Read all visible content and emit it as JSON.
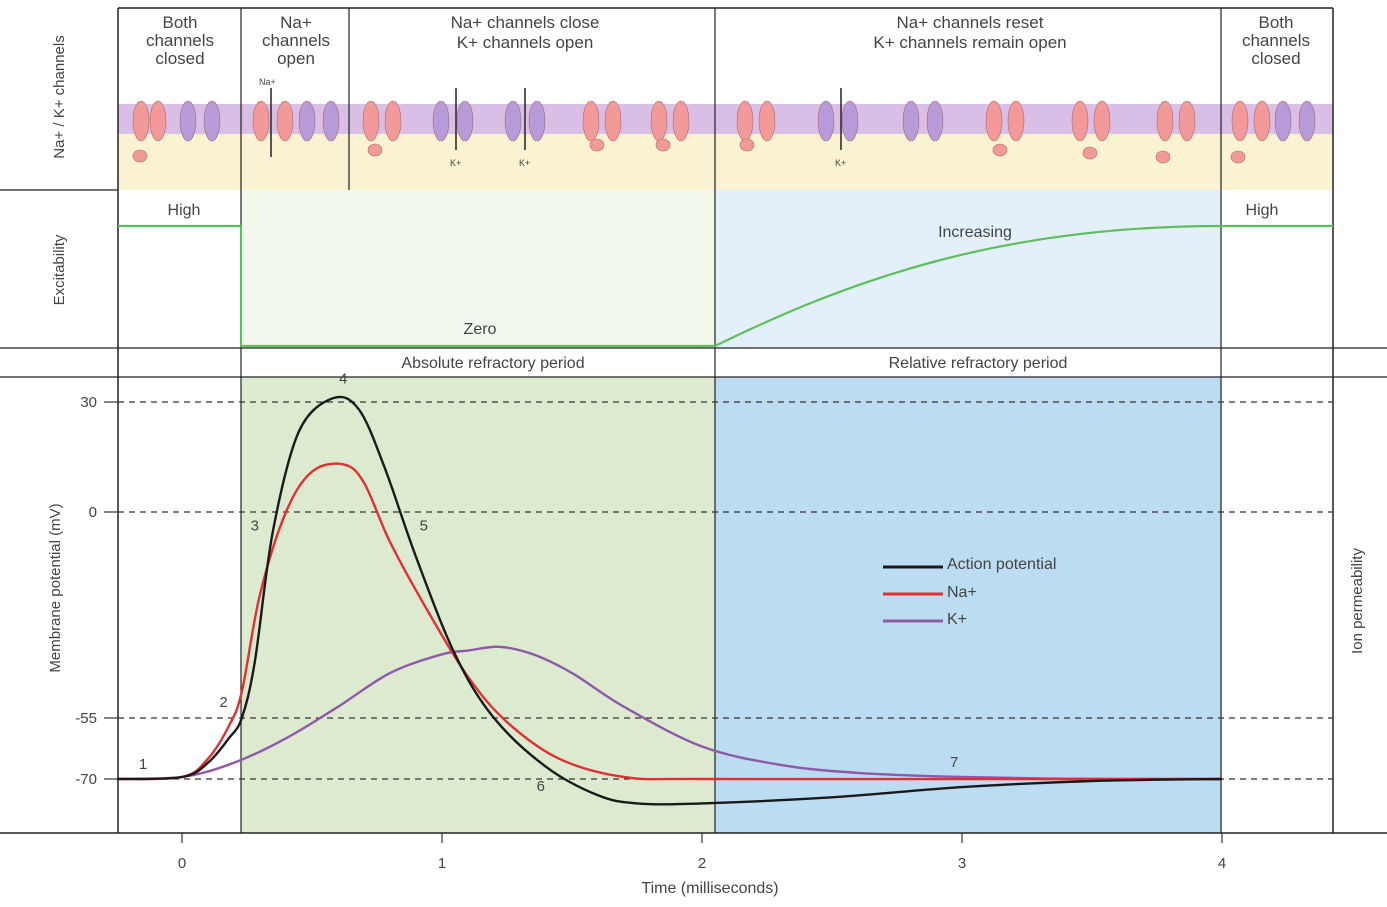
{
  "header": {
    "row_label": "Na+ / K+ channels",
    "phases": [
      {
        "lines": [
          "Both",
          "channels",
          "closed"
        ]
      },
      {
        "lines": [
          "Na+",
          "channels",
          "open"
        ]
      },
      {
        "lines": [
          "Na+ channels close",
          "K+ channels open"
        ]
      },
      {
        "lines": [
          "Na+ channels reset",
          "K+ channels remain open"
        ]
      },
      {
        "lines": [
          "Both",
          "channels",
          "closed"
        ]
      }
    ],
    "ion_tags": [
      "Na+",
      "K+",
      "K+",
      "K+"
    ]
  },
  "excitability": {
    "row_label": "Excitability",
    "labels": [
      "High",
      "Zero",
      "Increasing",
      "High"
    ],
    "color": "#5cbf5c"
  },
  "periods": {
    "absolute": "Absolute refractory period",
    "relative": "Relative refractory period",
    "absolute_color": "#dcebd0",
    "relative_color": "#bcdcf2"
  },
  "colors": {
    "membrane": "#d9bfe6",
    "cytoplasm": "#f9f3d2",
    "na_channel": "#f29a9a",
    "k_channel": "#b79ad8"
  },
  "chart_data": {
    "type": "line",
    "xlabel": "Time (milliseconds)",
    "ylabel": "Membrane potential (mV)",
    "y2label": "Ion permeability",
    "xlim": [
      -0.25,
      4.45
    ],
    "ylim": [
      -82,
      38
    ],
    "xticks": [
      0,
      1,
      2,
      3,
      4
    ],
    "xtick_labels": [
      "0",
      "1",
      "2",
      "3",
      "4"
    ],
    "yticks": [
      30,
      0,
      -55,
      -70
    ],
    "ytick_labels": [
      "30",
      "0",
      "-55",
      "-70"
    ],
    "gridlines_dashed": [
      30,
      0,
      -55,
      -70
    ],
    "legend_position": "center-right",
    "series": [
      {
        "name": "Action potential",
        "color": "#1a1a1a",
        "x": [
          -0.25,
          0,
          0.1,
          0.18,
          0.23,
          0.28,
          0.35,
          0.45,
          0.58,
          0.68,
          0.78,
          0.9,
          1.05,
          1.2,
          1.4,
          1.6,
          1.75,
          2.0,
          2.5,
          3.0,
          3.5,
          4.0
        ],
        "y": [
          -70,
          -69.5,
          -66,
          -60,
          -55,
          -40,
          -5,
          22,
          31,
          28,
          12,
          -12,
          -38,
          -55,
          -67,
          -74,
          -76,
          -76,
          -74.5,
          -72,
          -70.5,
          -70
        ]
      },
      {
        "name": "Na+",
        "color": "#e03030",
        "x": [
          -0.25,
          0,
          0.1,
          0.18,
          0.23,
          0.3,
          0.4,
          0.5,
          0.62,
          0.7,
          0.8,
          0.95,
          1.1,
          1.25,
          1.45,
          1.7,
          2.0,
          3.0,
          4.0
        ],
        "y": [
          -70,
          -69.5,
          -65,
          -57,
          -48,
          -22,
          0,
          11,
          13,
          8,
          -8,
          -27,
          -44,
          -56,
          -65,
          -69.5,
          -70,
          -70,
          -70
        ]
      },
      {
        "name": "K+",
        "color": "#8e5aa8",
        "x": [
          -0.25,
          0,
          0.2,
          0.4,
          0.6,
          0.8,
          1.0,
          1.1,
          1.22,
          1.35,
          1.5,
          1.7,
          2.0,
          2.3,
          2.6,
          3.0,
          3.5,
          4.0
        ],
        "y": [
          -70,
          -69.5,
          -66,
          -60,
          -52,
          -43,
          -38,
          -37,
          -36,
          -38,
          -43,
          -52,
          -62,
          -66.5,
          -68.5,
          -69.5,
          -70,
          -70
        ]
      }
    ],
    "annotations": [
      {
        "text": "1",
        "x": -0.15,
        "y": -67.5
      },
      {
        "text": "2",
        "x": 0.16,
        "y": -52
      },
      {
        "text": "3",
        "x": 0.28,
        "y": -5
      },
      {
        "text": "4",
        "x": 0.62,
        "y": 35
      },
      {
        "text": "5",
        "x": 0.93,
        "y": -5
      },
      {
        "text": "6",
        "x": 1.38,
        "y": -73
      },
      {
        "text": "7",
        "x": 2.97,
        "y": -67
      }
    ]
  }
}
